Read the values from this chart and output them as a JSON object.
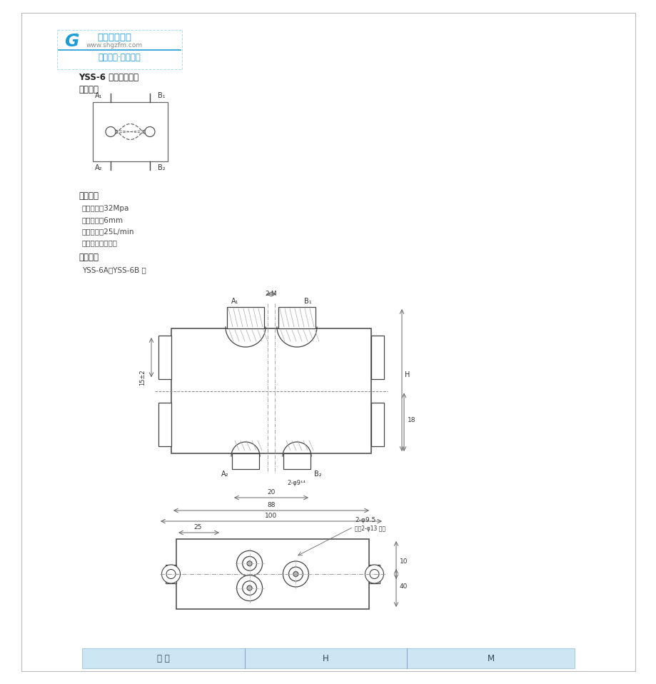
{
  "page_bg": "#ffffff",
  "logo_color": "#1b9cd6",
  "logo_text1": "好阀门工洲造",
  "logo_text2": "www.shgzfm.com",
  "logo_text3": "工洲阀门·台湾品质",
  "title": "YSS-6 型双向液压锁",
  "symbol_title": "图形符号",
  "tech_params_title": "技术参数",
  "tech_params": [
    "公称压力：32Mpa",
    "公称通径：6mm",
    "额定流量：25L/min",
    "适用介质：液压油"
  ],
  "dimension_title": "外形尺寸",
  "model_line": "YSS-6A、YSS-6B 型",
  "table_headers": [
    "型 号",
    "H",
    "M"
  ],
  "dc": "#444444",
  "hatch_color": "#999999"
}
